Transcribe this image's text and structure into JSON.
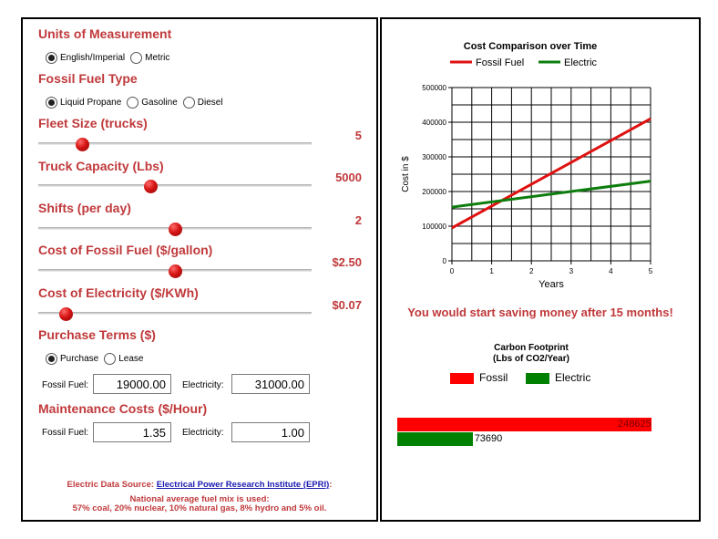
{
  "units": {
    "title": "Units of Measurement",
    "options": [
      "English/Imperial",
      "Metric"
    ],
    "selected": 0
  },
  "fuel_type": {
    "title": "Fossil Fuel Type",
    "options": [
      "Liquid Propane",
      "Gasoline",
      "Diesel"
    ],
    "selected": 0
  },
  "sliders": [
    {
      "label": "Fleet Size (trucks)",
      "value": "5",
      "level": 0.16
    },
    {
      "label": "Truck Capacity (Lbs)",
      "value": "5000",
      "level": 0.41
    },
    {
      "label": "Shifts (per day)",
      "value": "2",
      "level": 0.5
    },
    {
      "label": "Cost of Fossil Fuel ($/gallon)",
      "value": "$2.50",
      "level": 0.5
    },
    {
      "label": "Cost of Electricity ($/KWh)",
      "value": "$0.07",
      "level": 0.1
    }
  ],
  "purchase_terms": {
    "title": "Purchase Terms ($)",
    "options": [
      "Purchase",
      "Lease"
    ],
    "selected": 0,
    "fossil_label": "Fossil Fuel:",
    "fossil_value": "19000.00",
    "electric_label": "Electricity:",
    "electric_value": "31000.00"
  },
  "maintenance": {
    "title": "Maintenance Costs ($/Hour)",
    "fossil_label": "Fossil Fuel:",
    "fossil_value": "1.35",
    "electric_label": "Electricity:",
    "electric_value": "1.00"
  },
  "footer": {
    "source_prefix": "Electric Data Source: ",
    "source_link": "Electrical Power Research Institute (EPRI)",
    "source_suffix": ":",
    "line2": "National average fuel mix is used:",
    "line3": "57% coal, 20% nuclear, 10% natural gas, 8% hydro and 5% oil."
  },
  "saving_message": "You would start saving money after 15 months!",
  "colors": {
    "fossil": "#e01010",
    "electric": "#0d7d0d",
    "accent": "#c0393b"
  },
  "chart_data": [
    {
      "type": "line",
      "title": "Cost Comparison over Time",
      "xlabel": "Years",
      "ylabel": "Cost in $",
      "x": [
        0,
        5
      ],
      "xlim": [
        0,
        5
      ],
      "ylim": [
        0,
        500000
      ],
      "x_ticks": [
        "0",
        "1",
        "2",
        "3",
        "4",
        "5"
      ],
      "y_ticks": [
        "0",
        "100000",
        "200000",
        "300000",
        "400000",
        "500000"
      ],
      "grid": true,
      "legend": "top",
      "series": [
        {
          "name": "Fossil Fuel",
          "values": [
            95000,
            410000
          ],
          "color": "#e01010"
        },
        {
          "name": "Electric",
          "values": [
            155000,
            230000
          ],
          "color": "#0d7d0d"
        }
      ]
    },
    {
      "type": "bar",
      "orientation": "horizontal",
      "title": "Carbon Footprint",
      "subtitle": "(Lbs of CO2/Year)",
      "legend": "top",
      "xlim": [
        0,
        248625
      ],
      "series": [
        {
          "name": "Fossil",
          "value": 248625,
          "label": "248625",
          "color": "#ff0000"
        },
        {
          "name": "Electric",
          "value": 73690,
          "label": "73690",
          "color": "#008000"
        }
      ]
    }
  ]
}
